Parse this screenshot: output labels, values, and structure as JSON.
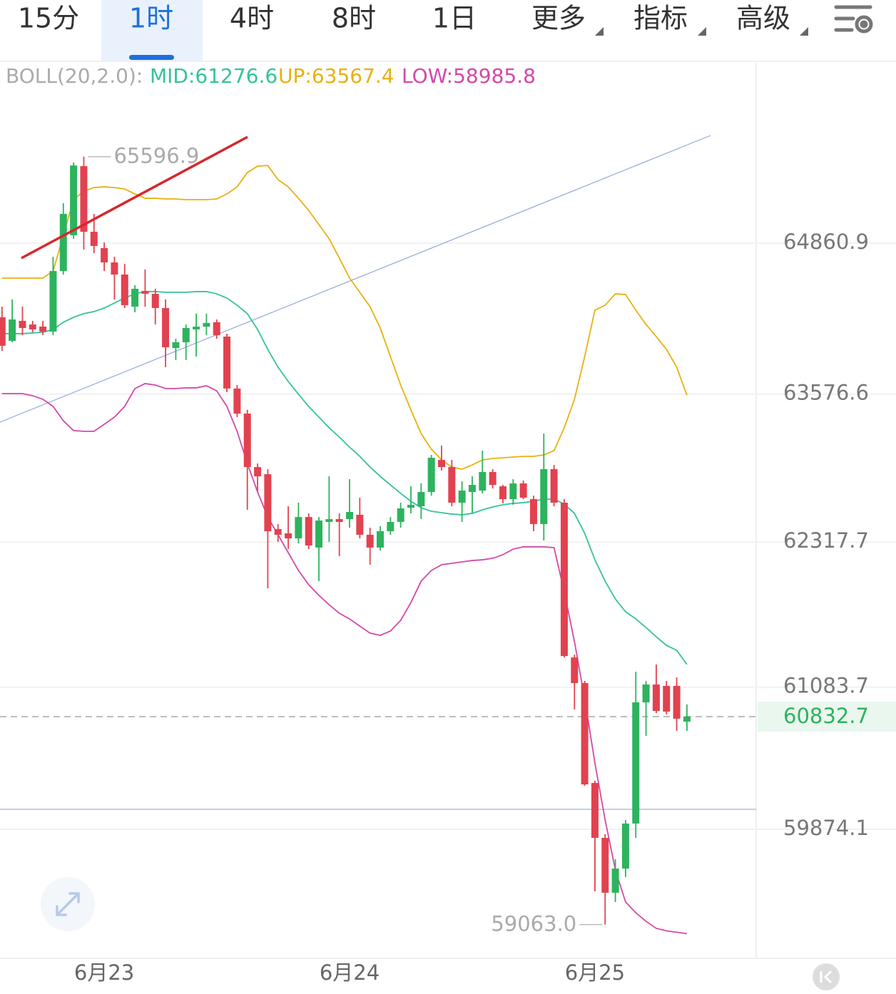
{
  "toolbar": {
    "tabs": [
      "15分",
      "1时",
      "4时",
      "8时",
      "1日",
      "更多",
      "指标",
      "高级"
    ],
    "active": 1
  },
  "chart_data": {
    "type": "candlestick",
    "categories": [
      null,
      null,
      null,
      null,
      null,
      null,
      null,
      null,
      null,
      null,
      "6月23",
      null,
      null,
      null,
      null,
      null,
      null,
      null,
      null,
      null,
      null,
      null,
      null,
      null,
      null,
      null,
      null,
      null,
      null,
      null,
      null,
      null,
      null,
      null,
      "6月24",
      null,
      null,
      null,
      null,
      null,
      null,
      null,
      null,
      null,
      null,
      null,
      null,
      null,
      null,
      null,
      null,
      null,
      null,
      null,
      null,
      null,
      null,
      null,
      "6月25",
      null,
      null,
      null,
      null,
      null,
      null,
      null,
      null,
      null
    ],
    "open": [
      64230,
      64030,
      64200,
      64169,
      64151,
      64109,
      64624,
      64928,
      65516,
      64958,
      64819,
      64697,
      64594,
      64321,
      64455,
      64430,
      64309,
      63969,
      64018,
      64127,
      64151,
      64188,
      64066,
      63624,
      63411,
      62956,
      62895,
      62428,
      62392,
      62349,
      62531,
      62271,
      62489,
      62513,
      62513,
      62550,
      62380,
      62271,
      62410,
      62489,
      62610,
      62622,
      62744,
      63017,
      62956,
      62653,
      62744,
      62756,
      62914,
      62792,
      62683,
      62817,
      62683,
      62471,
      62938,
      62653,
      61336,
      61118,
      60268,
      59801,
      59334,
      59540,
      59923,
      60954,
      61106,
      61094,
      61094,
      60790
    ],
    "high": [
      64321,
      64382,
      64321,
      64200,
      64200,
      64746,
      65201,
      65547,
      65596.9,
      65110,
      64867,
      64746,
      64685,
      64503,
      64637,
      64473,
      64382,
      64048,
      64169,
      64261,
      64261,
      64212,
      64091,
      63654,
      63442,
      62986,
      62938,
      62471,
      62622,
      62653,
      62562,
      62531,
      62877,
      62562,
      62853,
      62695,
      62440,
      62453,
      62531,
      62653,
      62792,
      62817,
      63059,
      63138,
      63017,
      62835,
      62877,
      63096,
      62938,
      62804,
      62853,
      62841,
      62713,
      63241,
      62974,
      62683,
      61360,
      61136,
      60287,
      59832,
      59619,
      59953,
      61215,
      61136,
      61276,
      61136,
      61166,
      60936
    ],
    "low": [
      63945,
      64018,
      64078,
      64103,
      64078,
      64078,
      64594,
      64898,
      64807,
      64776,
      64624,
      64382,
      64309,
      64273,
      64321,
      64169,
      63806,
      63866,
      63866,
      63896,
      64078,
      64048,
      63593,
      63381,
      62592,
      62744,
      61925,
      62319,
      62258,
      62307,
      62258,
      61985,
      62319,
      62198,
      62440,
      62349,
      62125,
      62246,
      62380,
      62440,
      62562,
      62513,
      62713,
      62926,
      62622,
      62489,
      62562,
      62732,
      62774,
      62647,
      62635,
      62683,
      62410,
      62331,
      62622,
      61336,
      60893,
      60244,
      59346,
      59063,
      59255,
      59468,
      59801,
      60669,
      60863,
      60851,
      60711,
      60711
    ],
    "close": [
      63988,
      64212,
      64139,
      64127,
      64109,
      64624,
      65110,
      65522,
      64958,
      64837,
      64697,
      64594,
      64333,
      64473,
      64430,
      64309,
      63975,
      64018,
      64139,
      64151,
      64182,
      64078,
      63624,
      63411,
      62956,
      62877,
      62410,
      62380,
      62349,
      62531,
      62289,
      62501,
      62513,
      62489,
      62574,
      62380,
      62271,
      62410,
      62489,
      62604,
      62635,
      62744,
      63035,
      62956,
      62653,
      62756,
      62804,
      62914,
      62804,
      62683,
      62817,
      62695,
      62471,
      62938,
      62653,
      61348,
      61118,
      60256,
      59801,
      59334,
      59540,
      59923,
      60954,
      61106,
      60881,
      60875,
      60815,
      60832.7
    ],
    "up_color": "#2db35e",
    "down_color": "#e2424f",
    "ylim": [
      58782,
      66396
    ],
    "yticks": [
      59874.1,
      61083.7,
      62317.7,
      63576.6,
      64860.9
    ],
    "grid": true,
    "last_price": 60832.7,
    "high_marker": 65596.9,
    "low_marker": {
      "value": 59063,
      "label": "59063.0"
    },
    "indicator": {
      "label": "BOLL(20,2.0):",
      "series": [
        {
          "name": "MID:61276.6",
          "color": "#35c29c",
          "values": [
            64091,
            64091,
            64091,
            64097,
            64103,
            64127,
            64188,
            64230,
            64261,
            64279,
            64309,
            64352,
            64394,
            64430,
            64449,
            64449,
            64443,
            64443,
            64443,
            64449,
            64449,
            64430,
            64394,
            64333,
            64261,
            64127,
            63957,
            63806,
            63684,
            63575,
            63472,
            63381,
            63290,
            63211,
            63126,
            63047,
            62956,
            62877,
            62804,
            62732,
            62665,
            62610,
            62580,
            62568,
            62556,
            62550,
            62562,
            62592,
            62616,
            62635,
            62647,
            62653,
            62665,
            62683,
            62683,
            62641,
            62562,
            62392,
            62167,
            61985,
            61834,
            61725,
            61664,
            61591,
            61512,
            61439,
            61397,
            61276.6
          ]
        },
        {
          "name": "UP:63567.4",
          "color": "#e8b10f",
          "values": [
            64564,
            64564,
            64564,
            64564,
            64564,
            64624,
            64928,
            65231,
            65304,
            65334,
            65340,
            65334,
            65322,
            65280,
            65243,
            65243,
            65237,
            65237,
            65231,
            65231,
            65231,
            65237,
            65280,
            65340,
            65462,
            65516,
            65522,
            65401,
            65340,
            65243,
            65140,
            65019,
            64898,
            64734,
            64564,
            64443,
            64321,
            64139,
            63896,
            63654,
            63442,
            63241,
            63108,
            63017,
            62956,
            62938,
            62974,
            63017,
            63029,
            63035,
            63041,
            63047,
            63047,
            63059,
            63096,
            63290,
            63533,
            63896,
            64291,
            64333,
            64430,
            64424,
            64291,
            64169,
            64066,
            63957,
            63806,
            63567.4
          ]
        },
        {
          "name": "LOW:58985.8",
          "color": "#d448a8",
          "values": [
            63581,
            63581,
            63581,
            63563,
            63533,
            63472,
            63350,
            63266,
            63260,
            63260,
            63320,
            63381,
            63472,
            63624,
            63666,
            63654,
            63624,
            63624,
            63630,
            63630,
            63648,
            63605,
            63472,
            63260,
            62986,
            62744,
            62531,
            62380,
            62228,
            62076,
            61955,
            61864,
            61785,
            61712,
            61664,
            61603,
            61543,
            61524,
            61561,
            61652,
            61803,
            61985,
            62076,
            62125,
            62137,
            62149,
            62161,
            62167,
            62180,
            62210,
            62258,
            62277,
            62277,
            62277,
            62271,
            61894,
            61470,
            60984,
            60438,
            59953,
            59528,
            59255,
            59164,
            59091,
            59031,
            59010,
            58998,
            58985.8
          ]
        }
      ]
    }
  }
}
